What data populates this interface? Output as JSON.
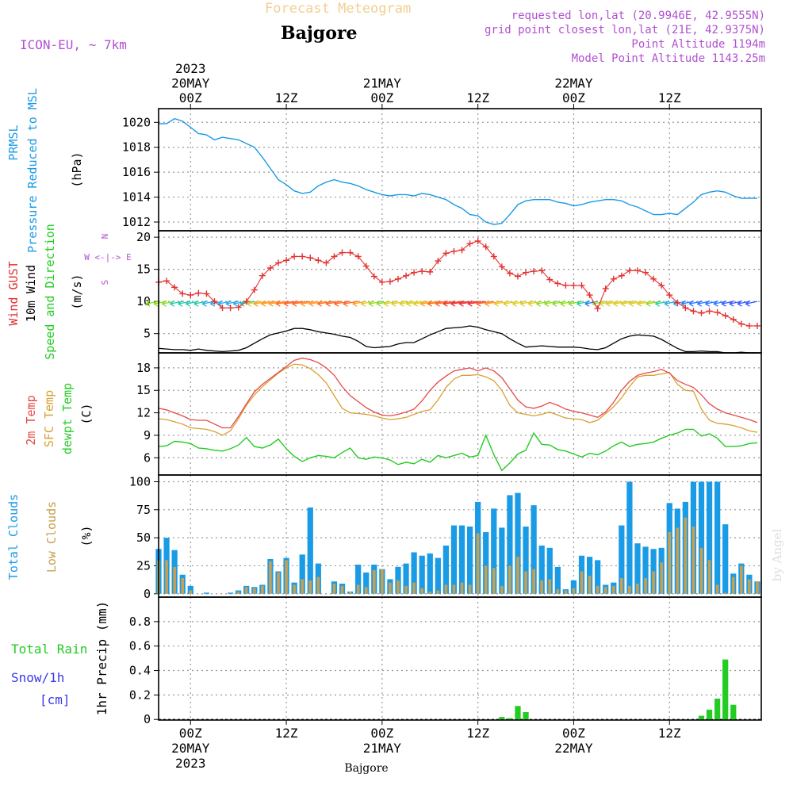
{
  "header": {
    "title": "Forecast Meteogram",
    "location": "Bajgore",
    "model": "ICON-EU, ~ 7km",
    "requested": "requested lon,lat (20.9946E, 42.9555N)",
    "grid_point": "grid point closest lon,lat (21E, 42.9375N)",
    "point_alt": "Point Altitude 1194m",
    "model_alt": "Model Point Altitude 1143.25m",
    "footer": "Bajgore",
    "credit": "by Angel"
  },
  "time_axis": {
    "top": [
      {
        "lines": [
          "2023",
          "20MAY",
          "00Z"
        ]
      },
      {
        "lines": [
          "12Z"
        ]
      },
      {
        "lines": [
          "21MAY",
          "00Z"
        ]
      },
      {
        "lines": [
          "12Z"
        ]
      },
      {
        "lines": [
          "22MAY",
          "00Z"
        ]
      },
      {
        "lines": [
          "12Z"
        ]
      }
    ],
    "bottom": [
      {
        "lines": [
          "00Z",
          "20MAY",
          "2023"
        ]
      },
      {
        "lines": [
          "12Z"
        ]
      },
      {
        "lines": [
          "00Z",
          "21MAY"
        ]
      },
      {
        "lines": [
          "12Z"
        ]
      },
      {
        "lines": [
          "00Z",
          "22MAY"
        ]
      },
      {
        "lines": [
          "12Z"
        ]
      }
    ]
  },
  "colors": {
    "pressure": "#1a9be6",
    "gust": "#e33232",
    "wind": "#000000",
    "t2m": "#e84848",
    "sfc": "#d9a030",
    "dewpt": "#22cc22",
    "total_cloud": "#1a9be6",
    "low_cloud": "#c8a050",
    "rain": "#22cc22",
    "snow": "#3a3ae8",
    "info": "#b050d0",
    "title": "#f0d090"
  },
  "chart_data": [
    {
      "type": "line",
      "panel": "pressure",
      "ylabels": [
        "PRMSL",
        "Pressure Reduced to MSL"
      ],
      "unit": "(hPa)",
      "ylim": [
        1011.3,
        1021.1
      ],
      "yticks": [
        1012,
        1014,
        1016,
        1018,
        1020
      ],
      "x_hours_from_20MAY00Z": [
        -4,
        -3,
        -2,
        -1,
        0,
        1,
        2,
        3,
        4,
        5,
        6,
        7,
        8,
        9,
        10,
        11,
        12,
        13,
        14,
        15,
        16,
        17,
        18,
        19,
        20,
        21,
        22,
        23,
        24,
        25,
        26,
        27,
        28,
        29,
        30,
        31,
        32,
        33,
        34,
        35,
        36,
        37,
        38,
        39,
        40,
        41,
        42,
        43,
        44,
        45,
        46,
        47,
        48,
        49,
        50,
        51,
        52,
        53,
        54,
        55,
        56,
        57,
        58,
        59,
        60,
        61,
        62,
        63,
        64,
        65,
        66,
        67,
        68,
        69,
        70,
        71
      ],
      "values": [
        1019.9,
        1019.9,
        1020.3,
        1020.1,
        1019.6,
        1019.1,
        1019.0,
        1018.6,
        1018.8,
        1018.7,
        1018.6,
        1018.3,
        1018.0,
        1017.2,
        1016.3,
        1015.4,
        1015.0,
        1014.5,
        1014.3,
        1014.4,
        1014.9,
        1015.2,
        1015.4,
        1015.2,
        1015.1,
        1014.9,
        1014.6,
        1014.4,
        1014.2,
        1014.1,
        1014.2,
        1014.2,
        1014.1,
        1014.3,
        1014.2,
        1014.0,
        1013.8,
        1013.4,
        1013.1,
        1012.6,
        1012.5,
        1012.0,
        1011.8,
        1011.9,
        1012.6,
        1013.4,
        1013.7,
        1013.8,
        1013.8,
        1013.8,
        1013.6,
        1013.5,
        1013.3,
        1013.4,
        1013.6,
        1013.7,
        1013.8,
        1013.8,
        1013.7,
        1013.4,
        1013.2,
        1012.9,
        1012.6,
        1012.6,
        1012.7,
        1012.6,
        1013.1,
        1013.6,
        1014.2,
        1014.4,
        1014.5,
        1014.4,
        1014.1,
        1013.9,
        1013.9,
        1013.9
      ]
    },
    {
      "type": "line",
      "panel": "wind",
      "ylabels": [
        "Wind GUST",
        "10m Wind",
        "Speed and Direction"
      ],
      "unit": "(m/s)",
      "compass": [
        "N",
        "W <-|-> E",
        "S"
      ],
      "ylim": [
        2.0,
        21.0
      ],
      "yticks": [
        5,
        10,
        15,
        20
      ],
      "x_hours_from_20MAY00Z": [
        -4,
        -3,
        -2,
        -1,
        0,
        1,
        2,
        3,
        4,
        5,
        6,
        7,
        8,
        9,
        10,
        11,
        12,
        13,
        14,
        15,
        16,
        17,
        18,
        19,
        20,
        21,
        22,
        23,
        24,
        25,
        26,
        27,
        28,
        29,
        30,
        31,
        32,
        33,
        34,
        35,
        36,
        37,
        38,
        39,
        40,
        41,
        42,
        43,
        44,
        45,
        46,
        47,
        48,
        49,
        50,
        51,
        52,
        53,
        54,
        55,
        56,
        57,
        58,
        59,
        60,
        61,
        62,
        63,
        64,
        65,
        66,
        67,
        68,
        69,
        70,
        71
      ],
      "series": [
        {
          "name": "Wind GUST",
          "values": [
            13.0,
            13.2,
            12.2,
            11.2,
            11.0,
            11.3,
            11.2,
            10.0,
            9.0,
            9.0,
            9.1,
            10.0,
            11.8,
            14.0,
            15.2,
            16.0,
            16.4,
            17.0,
            17.0,
            16.8,
            16.4,
            16.0,
            17.0,
            17.6,
            17.6,
            17.0,
            15.5,
            13.9,
            13.0,
            13.1,
            13.5,
            14.0,
            14.5,
            14.7,
            14.6,
            16.3,
            17.5,
            17.8,
            18.0,
            19.0,
            19.4,
            18.5,
            17.0,
            15.4,
            14.4,
            13.9,
            14.5,
            14.7,
            14.8,
            13.4,
            12.8,
            12.5,
            12.5,
            12.5,
            11.0,
            8.9,
            12.0,
            13.5,
            14.0,
            14.8,
            14.8,
            14.5,
            13.5,
            12.5,
            11.0,
            9.8,
            9.0,
            8.5,
            8.2,
            8.5,
            8.3,
            7.8,
            7.2,
            6.5,
            6.2,
            6.2
          ]
        },
        {
          "name": "10m Wind",
          "values": [
            2.7,
            2.6,
            2.5,
            2.5,
            2.4,
            2.6,
            2.4,
            2.3,
            2.2,
            2.3,
            2.4,
            2.8,
            3.5,
            4.2,
            4.8,
            5.1,
            5.4,
            5.8,
            5.8,
            5.6,
            5.3,
            5.1,
            4.9,
            4.6,
            4.4,
            3.8,
            3.0,
            2.8,
            2.9,
            3.0,
            3.4,
            3.6,
            3.6,
            4.2,
            4.8,
            5.3,
            5.8,
            5.9,
            6.0,
            6.2,
            6.0,
            5.6,
            5.3,
            5.0,
            4.2,
            3.5,
            2.9,
            3.0,
            3.1,
            3.0,
            2.9,
            2.9,
            2.9,
            2.8,
            2.6,
            2.5,
            2.8,
            3.5,
            4.2,
            4.6,
            4.8,
            4.7,
            4.6,
            4.1,
            3.4,
            2.7,
            2.2,
            2.2,
            2.3,
            2.2,
            2.2,
            2.0,
            2.0,
            2.1,
            2.0,
            2.0
          ]
        }
      ]
    },
    {
      "type": "line",
      "panel": "temperature",
      "ylabels": [
        "2m Temp",
        "SFC Temp",
        "dewpt Temp"
      ],
      "unit": "(C)",
      "ylim": [
        3.7,
        20.0
      ],
      "yticks": [
        6,
        9,
        12,
        15,
        18
      ],
      "x_hours_from_20MAY00Z": [
        -4,
        -3,
        -2,
        -1,
        0,
        1,
        2,
        3,
        4,
        5,
        6,
        7,
        8,
        9,
        10,
        11,
        12,
        13,
        14,
        15,
        16,
        17,
        18,
        19,
        20,
        21,
        22,
        23,
        24,
        25,
        26,
        27,
        28,
        29,
        30,
        31,
        32,
        33,
        34,
        35,
        36,
        37,
        38,
        39,
        40,
        41,
        42,
        43,
        44,
        45,
        46,
        47,
        48,
        49,
        50,
        51,
        52,
        53,
        54,
        55,
        56,
        57,
        58,
        59,
        60,
        61,
        62,
        63,
        64,
        65,
        66,
        67,
        68,
        69,
        70,
        71
      ],
      "series": [
        {
          "name": "2m Temp",
          "values": [
            12.6,
            12.4,
            12.0,
            11.6,
            11.1,
            11.0,
            11.0,
            10.5,
            10.0,
            10.0,
            11.5,
            13.2,
            14.8,
            15.8,
            16.6,
            17.4,
            18.2,
            19.0,
            19.3,
            19.1,
            18.7,
            18.0,
            17.0,
            15.5,
            14.3,
            13.5,
            12.7,
            12.1,
            11.7,
            11.6,
            11.8,
            12.1,
            12.5,
            13.6,
            15.0,
            16.1,
            16.9,
            17.6,
            17.8,
            18.0,
            17.6,
            18.0,
            17.6,
            16.7,
            15.2,
            13.7,
            12.8,
            12.6,
            12.9,
            13.4,
            13.0,
            12.5,
            12.2,
            12.0,
            11.7,
            11.4,
            12.1,
            13.4,
            15.0,
            16.2,
            17.0,
            17.3,
            17.5,
            17.8,
            17.3,
            16.3,
            15.8,
            15.4,
            14.4,
            13.2,
            12.5,
            12.0,
            11.7,
            11.4,
            11.1,
            10.7
          ]
        },
        {
          "name": "SFC Temp",
          "values": [
            11.2,
            11.1,
            10.8,
            10.5,
            10.0,
            9.9,
            9.8,
            9.5,
            9.0,
            9.6,
            11.2,
            13.0,
            14.4,
            15.5,
            16.4,
            17.3,
            18.0,
            18.5,
            18.4,
            17.9,
            17.1,
            16.0,
            14.3,
            12.6,
            12.0,
            11.9,
            11.8,
            11.6,
            11.3,
            11.1,
            11.2,
            11.4,
            11.8,
            12.2,
            12.4,
            13.7,
            15.4,
            16.5,
            17.0,
            17.0,
            17.1,
            16.8,
            16.3,
            15.0,
            13.0,
            12.0,
            11.8,
            11.6,
            11.8,
            12.1,
            11.7,
            11.3,
            11.2,
            11.1,
            10.7,
            11.0,
            11.9,
            12.8,
            14.0,
            15.5,
            16.8,
            17.0,
            17.0,
            17.2,
            17.4,
            15.8,
            15.0,
            14.9,
            12.5,
            11.0,
            10.6,
            10.5,
            10.3,
            10.0,
            9.6,
            9.4
          ]
        },
        {
          "name": "dewpt Temp",
          "values": [
            7.5,
            7.6,
            8.2,
            8.1,
            7.9,
            7.3,
            7.2,
            7.0,
            6.9,
            7.2,
            7.7,
            8.7,
            7.5,
            7.3,
            7.7,
            8.5,
            7.2,
            6.2,
            5.5,
            6.0,
            6.3,
            6.2,
            6.0,
            6.7,
            7.3,
            6.0,
            5.8,
            6.1,
            6.0,
            5.7,
            5.1,
            5.4,
            5.2,
            5.8,
            5.4,
            6.3,
            6.0,
            6.3,
            6.6,
            6.1,
            6.3,
            9.0,
            6.4,
            4.3,
            5.3,
            6.5,
            7.0,
            9.3,
            7.8,
            7.7,
            7.1,
            6.9,
            6.5,
            6.1,
            6.6,
            6.4,
            6.9,
            7.6,
            8.1,
            7.5,
            7.8,
            7.9,
            8.1,
            8.6,
            9.0,
            9.3,
            9.8,
            9.8,
            8.9,
            9.2,
            8.6,
            7.5,
            7.5,
            7.6,
            7.9,
            8.0
          ]
        }
      ]
    },
    {
      "type": "bar",
      "panel": "clouds",
      "ylabels": [
        "Total Clouds",
        "Low Clouds"
      ],
      "unit": "(%)",
      "ylim": [
        -3,
        106
      ],
      "yticks": [
        0,
        25,
        50,
        75,
        100
      ],
      "x_hours_from_20MAY00Z": [
        -4,
        -3,
        -2,
        -1,
        0,
        1,
        2,
        3,
        4,
        5,
        6,
        7,
        8,
        9,
        10,
        11,
        12,
        13,
        14,
        15,
        16,
        17,
        18,
        19,
        20,
        21,
        22,
        23,
        24,
        25,
        26,
        27,
        28,
        29,
        30,
        31,
        32,
        33,
        34,
        35,
        36,
        37,
        38,
        39,
        40,
        41,
        42,
        43,
        44,
        45,
        46,
        47,
        48,
        49,
        50,
        51,
        52,
        53,
        54,
        55,
        56,
        57,
        58,
        59,
        60,
        61,
        62,
        63,
        64,
        65,
        66,
        67,
        68,
        69,
        70,
        71
      ],
      "series": [
        {
          "name": "Total Clouds",
          "values": [
            40,
            50,
            39,
            17,
            7,
            0,
            1,
            0,
            0,
            1,
            3,
            7,
            6,
            8,
            31,
            20,
            32,
            10,
            35,
            77,
            27,
            0,
            11,
            9,
            2,
            26,
            19,
            26,
            22,
            13,
            24,
            27,
            37,
            34,
            36,
            32,
            43,
            61,
            61,
            60,
            82,
            55,
            76,
            59,
            88,
            90,
            60,
            79,
            43,
            41,
            24,
            4,
            12,
            34,
            33,
            30,
            8,
            10,
            61,
            100,
            45,
            42,
            40,
            41,
            81,
            76,
            82,
            100,
            100,
            100,
            100,
            62,
            18,
            27,
            17,
            11
          ]
        },
        {
          "name": "Low Clouds",
          "values": [
            30,
            30,
            24,
            14,
            3,
            0,
            0,
            0,
            0,
            0,
            2,
            6,
            5,
            7,
            29,
            19,
            30,
            8,
            13,
            12,
            15,
            0,
            9,
            7,
            2,
            8,
            6,
            21,
            22,
            10,
            12,
            7,
            10,
            5,
            2,
            3,
            8,
            8,
            10,
            8,
            54,
            25,
            23,
            7,
            25,
            33,
            20,
            22,
            12,
            13,
            4,
            3,
            5,
            20,
            16,
            7,
            6,
            7,
            14,
            7,
            9,
            14,
            20,
            28,
            55,
            59,
            68,
            60,
            41,
            30,
            8,
            1,
            15,
            25,
            13,
            11
          ]
        }
      ]
    },
    {
      "type": "bar",
      "panel": "precip",
      "ylabels": [
        "Total  Rain",
        "Snow/1h",
        "[cm]"
      ],
      "axis_label": "1hr Precip (mm)",
      "ylim": [
        -0.005,
        1.0
      ],
      "yticks": [
        0,
        0.2,
        0.4,
        0.6,
        0.8
      ],
      "x_hours_from_20MAY00Z": [
        39,
        40,
        41,
        42,
        43,
        64,
        65,
        66,
        67,
        68
      ],
      "values": [
        0.02,
        0.01,
        0.11,
        0.06,
        0.0,
        0.03,
        0.08,
        0.17,
        0.49,
        0.12
      ]
    }
  ]
}
